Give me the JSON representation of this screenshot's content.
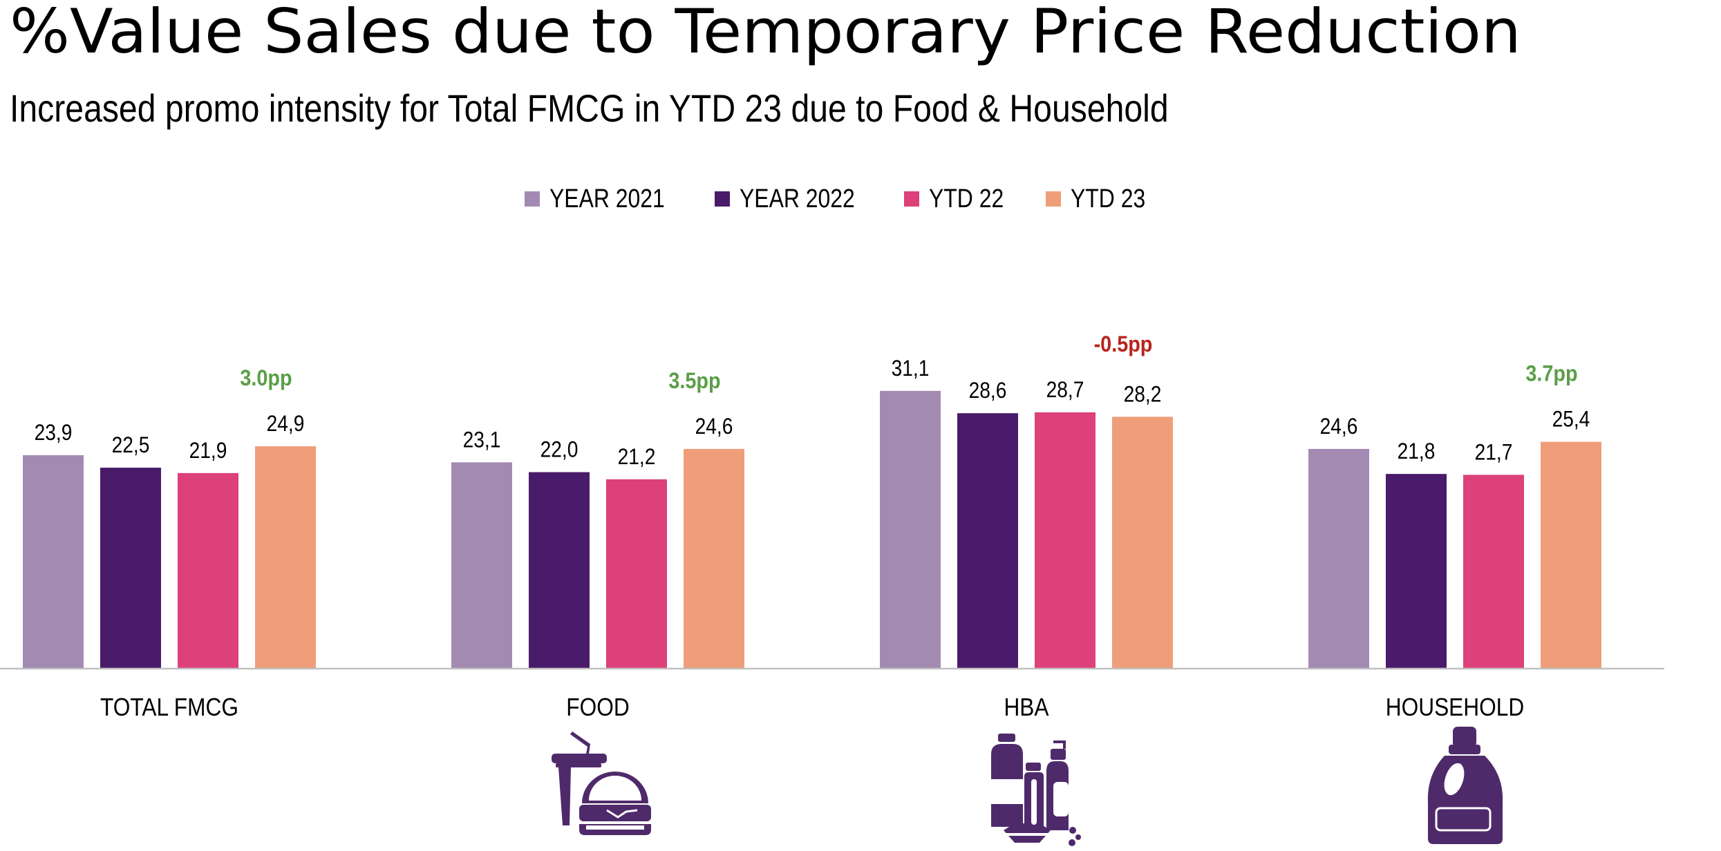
{
  "header": {
    "title": "%Value Sales due to Temporary Price Reduction",
    "subtitle": "Increased promo intensity for Total FMCG in YTD 23 due to Food & Household"
  },
  "colors": {
    "YEAR 2021": "#a38ab3",
    "YEAR 2022": "#4a1b6a",
    "YTD 22": "#dc4179",
    "YTD 23": "#f09e7a",
    "positive_change": "#5a9e47",
    "negative_change": "#b8241c",
    "axis": "#c0c0c0",
    "icon": "#4f2a6b"
  },
  "legend": {
    "items": [
      {
        "label": "YEAR 2021",
        "color": "#a38ab3"
      },
      {
        "label": "YEAR 2022",
        "color": "#4a1b6a"
      },
      {
        "label": "YTD 22",
        "color": "#dc4179"
      },
      {
        "label": "YTD 23",
        "color": "#f09e7a"
      }
    ]
  },
  "icons": [
    {
      "category": "FOOD",
      "name": "food-burger-drink-icon"
    },
    {
      "category": "HBA",
      "name": "hba-bottles-icon"
    },
    {
      "category": "HOUSEHOLD",
      "name": "household-detergent-bottle-icon"
    }
  ],
  "chart_data": {
    "type": "bar",
    "title": "%Value Sales due to Temporary Price Reduction",
    "subtitle": "Increased promo intensity for Total FMCG in YTD 23 due to Food & Household",
    "xlabel": "",
    "ylabel": "",
    "categories": [
      "TOTAL FMCG",
      "FOOD",
      "HBA",
      "HOUSEHOLD"
    ],
    "series": [
      {
        "name": "YEAR 2021",
        "values": [
          23.9,
          23.1,
          31.1,
          24.6
        ],
        "labels": [
          "23,9",
          "23,1",
          "31,1",
          "24,6"
        ]
      },
      {
        "name": "YEAR 2022",
        "values": [
          22.5,
          22.0,
          28.6,
          21.8
        ],
        "labels": [
          "22,5",
          "22,0",
          "28,6",
          "21,8"
        ]
      },
      {
        "name": "YTD 22",
        "values": [
          21.9,
          21.2,
          28.7,
          21.7
        ],
        "labels": [
          "21,9",
          "21,2",
          "28,7",
          "21,7"
        ]
      },
      {
        "name": "YTD 23",
        "values": [
          24.9,
          24.6,
          28.2,
          25.4
        ],
        "labels": [
          "24,9",
          "24,6",
          "28,2",
          "25,4"
        ]
      }
    ],
    "annotations": [
      {
        "category": "TOTAL FMCG",
        "text": "3.0pp",
        "value": 3.0,
        "sentiment": "positive"
      },
      {
        "category": "FOOD",
        "text": "3.5pp",
        "value": 3.5,
        "sentiment": "positive"
      },
      {
        "category": "HBA",
        "text": "-0.5pp",
        "value": -0.5,
        "sentiment": "negative"
      },
      {
        "category": "HOUSEHOLD",
        "text": "3.7pp",
        "value": 3.7,
        "sentiment": "positive"
      }
    ],
    "ylim": [
      0,
      32
    ],
    "grid": false,
    "y_axis_visible": false,
    "legend_position": "top-center"
  }
}
